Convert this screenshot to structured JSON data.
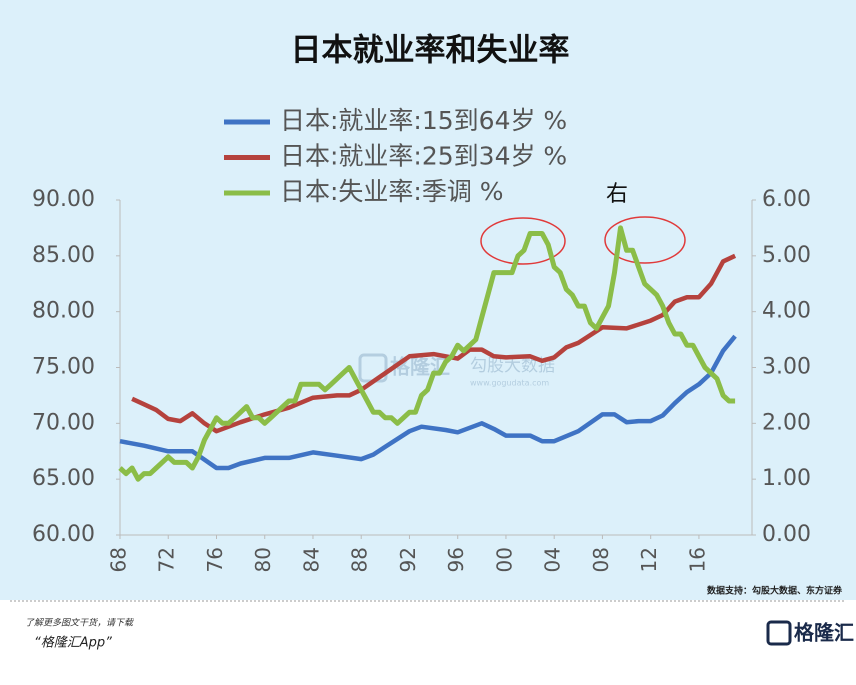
{
  "chart_data": {
    "type": "line",
    "title": "日本就业率和失业率",
    "annotation": "右",
    "source": "数据支持：勾股大数据、东方证券",
    "xlim": [
      1968,
      2020.4
    ],
    "xticks": [
      {
        "value": 1968,
        "label": "68"
      },
      {
        "value": 1972,
        "label": "72"
      },
      {
        "value": 1976,
        "label": "76"
      },
      {
        "value": 1980,
        "label": "80"
      },
      {
        "value": 1984,
        "label": "84"
      },
      {
        "value": 1988,
        "label": "88"
      },
      {
        "value": 1992,
        "label": "92"
      },
      {
        "value": 1996,
        "label": "96"
      },
      {
        "value": 2000,
        "label": "00"
      },
      {
        "value": 2004,
        "label": "04"
      },
      {
        "value": 2008,
        "label": "08"
      },
      {
        "value": 2012,
        "label": "12"
      },
      {
        "value": 2016,
        "label": "16"
      }
    ],
    "ylim": [
      60,
      90
    ],
    "yticks": [
      {
        "value": 60,
        "label": "60.00"
      },
      {
        "value": 65,
        "label": "65.00"
      },
      {
        "value": 70,
        "label": "70.00"
      },
      {
        "value": 75,
        "label": "75.00"
      },
      {
        "value": 80,
        "label": "80.00"
      },
      {
        "value": 85,
        "label": "85.00"
      },
      {
        "value": 90,
        "label": "90.00"
      }
    ],
    "y2lim": [
      0,
      6
    ],
    "y2ticks": [
      {
        "value": 0,
        "label": "0.00"
      },
      {
        "value": 1,
        "label": "1.00"
      },
      {
        "value": 2,
        "label": "2.00"
      },
      {
        "value": 3,
        "label": "3.00"
      },
      {
        "value": 4,
        "label": "4.00"
      },
      {
        "value": 5,
        "label": "5.00"
      },
      {
        "value": 6,
        "label": "6.00"
      }
    ],
    "series": [
      {
        "name": "日本:就业率:15到64岁 %",
        "color": "#3f73c4",
        "x": [
          1968,
          1970,
          1972,
          1974,
          1976,
          1977,
          1978,
          1980,
          1982,
          1984,
          1986,
          1988,
          1989,
          1990,
          1992,
          1993,
          1995,
          1996,
          1998,
          1999,
          2000,
          2002,
          2003,
          2004,
          2006,
          2008,
          2009,
          2010,
          2011,
          2012,
          2013,
          2014,
          2015,
          2016,
          2017,
          2018,
          2019
        ],
        "values": [
          68.4,
          68.0,
          67.5,
          67.5,
          66.0,
          66.0,
          66.4,
          66.9,
          66.9,
          67.4,
          67.1,
          66.8,
          67.2,
          67.9,
          69.3,
          69.7,
          69.4,
          69.2,
          70.0,
          69.5,
          68.9,
          68.9,
          68.4,
          68.4,
          69.3,
          70.8,
          70.8,
          70.1,
          70.2,
          70.2,
          70.7,
          71.8,
          72.8,
          73.5,
          74.5,
          76.5,
          77.8
        ]
      },
      {
        "name": "日本:就业率:25到34岁 %",
        "color": "#b5423d",
        "x": [
          1969,
          1970,
          1971,
          1972,
          1973,
          1974,
          1975,
          1976,
          1978,
          1980,
          1982,
          1984,
          1986,
          1987,
          1988,
          1990,
          1992,
          1994,
          1996,
          1997,
          1998,
          1999,
          2000,
          2002,
          2003,
          2004,
          2005,
          2006,
          2008,
          2010,
          2012,
          2013,
          2014,
          2015,
          2016,
          2017,
          2018,
          2019
        ],
        "values": [
          72.2,
          71.7,
          71.2,
          70.4,
          70.2,
          70.9,
          70.0,
          69.3,
          70.1,
          70.8,
          71.4,
          72.3,
          72.5,
          72.5,
          73.0,
          74.5,
          76.0,
          76.2,
          75.8,
          76.6,
          76.6,
          76.0,
          75.9,
          76.0,
          75.6,
          75.9,
          76.8,
          77.2,
          78.6,
          78.5,
          79.2,
          79.7,
          80.9,
          81.3,
          81.3,
          82.5,
          84.5,
          85.0
        ]
      },
      {
        "name": "日本:失业率:季调 %",
        "color": "#8bbd48",
        "axis": "y2",
        "x": [
          1968,
          1968.5,
          1969,
          1969.5,
          1970,
          1970.5,
          1971,
          1971.5,
          1972,
          1972.5,
          1973,
          1973.5,
          1974,
          1974.5,
          1975,
          1975.5,
          1976,
          1976.5,
          1977,
          1977.5,
          1978,
          1978.5,
          1979,
          1979.5,
          1980,
          1980.5,
          1981,
          1981.5,
          1982,
          1982.5,
          1983,
          1983.5,
          1984,
          1984.5,
          1985,
          1985.5,
          1986,
          1986.5,
          1987,
          1987.5,
          1988,
          1988.5,
          1989,
          1989.5,
          1990,
          1990.5,
          1991,
          1991.5,
          1992,
          1992.5,
          1993,
          1993.5,
          1994,
          1994.5,
          1995,
          1995.5,
          1996,
          1996.5,
          1997,
          1997.5,
          1998,
          1998.5,
          1999,
          1999.5,
          2000,
          2000.5,
          2001,
          2001.5,
          2002,
          2002.5,
          2003,
          2003.5,
          2004,
          2004.5,
          2005,
          2005.5,
          2006,
          2006.5,
          2007,
          2007.5,
          2008,
          2008.5,
          2009,
          2009.5,
          2010,
          2010.5,
          2011,
          2011.5,
          2012,
          2012.5,
          2013,
          2013.5,
          2014,
          2014.5,
          2015,
          2015.5,
          2016,
          2016.5,
          2017,
          2017.5,
          2018,
          2018.5,
          2019
        ],
        "values": [
          1.2,
          1.1,
          1.2,
          1.0,
          1.1,
          1.1,
          1.2,
          1.3,
          1.4,
          1.3,
          1.3,
          1.3,
          1.2,
          1.4,
          1.7,
          1.9,
          2.1,
          2.0,
          2.0,
          2.1,
          2.2,
          2.3,
          2.1,
          2.1,
          2.0,
          2.1,
          2.2,
          2.3,
          2.4,
          2.4,
          2.7,
          2.7,
          2.7,
          2.7,
          2.6,
          2.7,
          2.8,
          2.9,
          3.0,
          2.8,
          2.6,
          2.4,
          2.2,
          2.2,
          2.1,
          2.1,
          2.0,
          2.1,
          2.2,
          2.2,
          2.5,
          2.6,
          2.9,
          2.9,
          3.1,
          3.2,
          3.4,
          3.3,
          3.4,
          3.5,
          3.9,
          4.3,
          4.7,
          4.7,
          4.7,
          4.7,
          5.0,
          5.1,
          5.4,
          5.4,
          5.4,
          5.2,
          4.8,
          4.7,
          4.4,
          4.3,
          4.1,
          4.1,
          3.8,
          3.7,
          3.9,
          4.1,
          4.7,
          5.5,
          5.1,
          5.1,
          4.8,
          4.5,
          4.4,
          4.3,
          4.1,
          3.8,
          3.6,
          3.6,
          3.4,
          3.4,
          3.2,
          3.0,
          2.9,
          2.8,
          2.5,
          2.4,
          2.4
        ]
      }
    ]
  },
  "watermark": {
    "brand": "格隆汇",
    "partner": "勾股大数据",
    "url": "www.gogudata.com"
  },
  "footer": {
    "prompt": "了解更多图文干货，请下载",
    "app": "“格隆汇App”",
    "logo": "格隆汇"
  }
}
